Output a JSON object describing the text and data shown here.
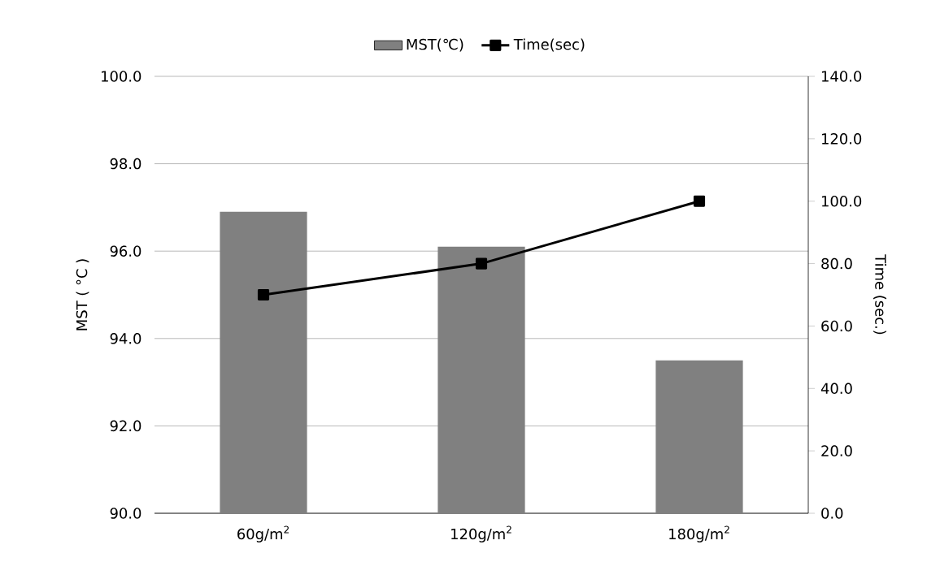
{
  "chart_data": {
    "type": "bar",
    "categories": [
      "60g/m$^{2}$",
      "120g/m$^{2}$",
      "180g/m$^{2}$"
    ],
    "ylabel": "MST ( °C )",
    "y2label": "Time (sec.)",
    "series": [
      {
        "name": "MST(℃)",
        "color": "#808080",
        "values": [
          96.9,
          96.1,
          93.5
        ]
      },
      {
        "name": "Time(sec)",
        "type": "line",
        "axis": "y2",
        "color": "#000000",
        "marker": "square",
        "values": [
          70,
          80,
          100
        ]
      }
    ],
    "ylim": [
      90,
      100
    ],
    "yticks": [
      {
        "value": 90,
        "label": "90.0"
      },
      {
        "value": 92,
        "label": "92.0"
      },
      {
        "value": 94,
        "label": "94.0"
      },
      {
        "value": 96,
        "label": "96.0"
      },
      {
        "value": 98,
        "label": "98.0"
      },
      {
        "value": 100,
        "label": "100.0"
      }
    ],
    "y2lim": [
      0,
      140
    ],
    "y2ticks": [
      {
        "value": 0,
        "label": "0.0"
      },
      {
        "value": 20,
        "label": "20.0"
      },
      {
        "value": 40,
        "label": "40.0"
      },
      {
        "value": 60,
        "label": "60.0"
      },
      {
        "value": 80,
        "label": "80.0"
      },
      {
        "value": 100,
        "label": "100.0"
      },
      {
        "value": 120,
        "label": "120.0"
      },
      {
        "value": 140,
        "label": "140.0"
      }
    ],
    "grid": "y",
    "legend": "top"
  }
}
